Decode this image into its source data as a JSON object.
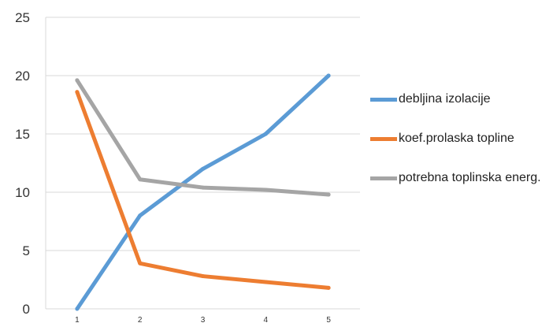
{
  "chart_data": {
    "type": "line",
    "title": "",
    "xlabel": "",
    "ylabel": "",
    "categories": [
      "1",
      "2",
      "3",
      "4",
      "5"
    ],
    "ylim": [
      0,
      25
    ],
    "yticks": [
      "0",
      "5",
      "10",
      "15",
      "20",
      "25"
    ],
    "grid": "horizontal",
    "legend_position": "right",
    "series": [
      {
        "name": "debljina izolacije",
        "color": "#5B9BD5",
        "values": [
          0,
          8,
          12,
          15,
          20
        ]
      },
      {
        "name": "koef.prolaska topline",
        "color": "#ED7D31",
        "values": [
          18.6,
          3.9,
          2.8,
          2.3,
          1.8
        ]
      },
      {
        "name": "potrebna toplinska energ.",
        "color": "#A5A5A5",
        "values": [
          19.6,
          11.1,
          10.4,
          10.2,
          9.8
        ]
      }
    ]
  }
}
